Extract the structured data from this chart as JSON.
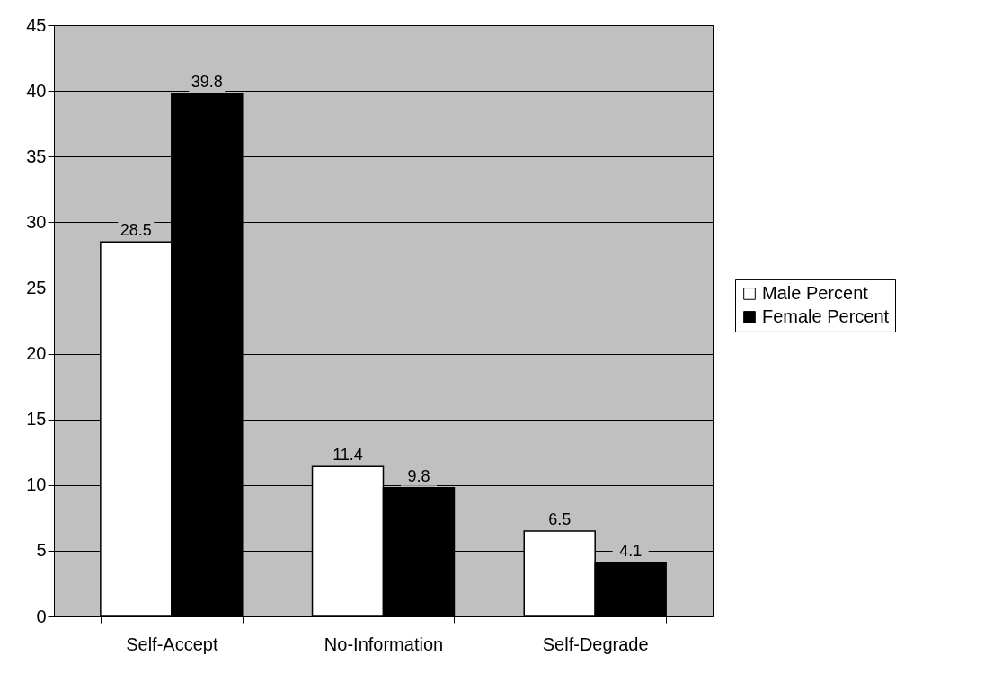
{
  "chart_data": {
    "type": "bar",
    "categories": [
      "Self-Accept",
      "No-Information",
      "Self-Degrade"
    ],
    "series": [
      {
        "name": "Male Percent",
        "color": "#ffffff",
        "values": [
          28.5,
          11.4,
          6.5
        ]
      },
      {
        "name": "Female Percent",
        "color": "#000000",
        "values": [
          39.8,
          9.8,
          4.1
        ]
      }
    ],
    "ylim": [
      0,
      45
    ],
    "yticks": [
      0,
      5,
      10,
      15,
      20,
      25,
      30,
      35,
      40,
      45
    ],
    "grid": "y",
    "legend": "right",
    "data_labels": true
  }
}
